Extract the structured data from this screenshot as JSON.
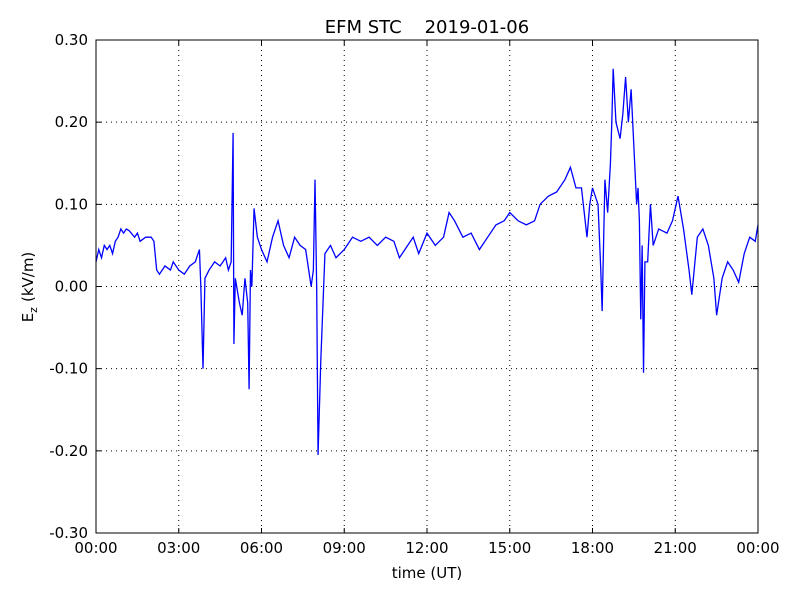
{
  "chart_data": {
    "type": "line",
    "title": "EFM STC    2019-01-06",
    "xlabel": "time (UT)",
    "ylabel": [
      "E",
      "z",
      "(kV/m)"
    ],
    "xlim": [
      0,
      24
    ],
    "xticks": [
      {
        "value": 0,
        "label": "00:00"
      },
      {
        "value": 3,
        "label": "03:00"
      },
      {
        "value": 6,
        "label": "06:00"
      },
      {
        "value": 9,
        "label": "09:00"
      },
      {
        "value": 12,
        "label": "12:00"
      },
      {
        "value": 15,
        "label": "15:00"
      },
      {
        "value": 18,
        "label": "18:00"
      },
      {
        "value": 21,
        "label": "21:00"
      },
      {
        "value": 24,
        "label": "00:00"
      }
    ],
    "ylim": [
      -0.3,
      0.3
    ],
    "yticks": [
      {
        "value": -0.3,
        "label": "-0.30"
      },
      {
        "value": -0.2,
        "label": "-0.20"
      },
      {
        "value": -0.1,
        "label": "-0.10"
      },
      {
        "value": 0,
        "label": "0.00"
      },
      {
        "value": 0.1,
        "label": "0.10"
      },
      {
        "value": 0.2,
        "label": "0.20"
      },
      {
        "value": 0.3,
        "label": "0.30"
      }
    ],
    "grid": true,
    "series": [
      {
        "color": "#0000ff",
        "x": [
          0.0,
          0.1,
          0.2,
          0.3,
          0.4,
          0.5,
          0.6,
          0.7,
          0.8,
          0.9,
          1.0,
          1.1,
          1.2,
          1.4,
          1.5,
          1.6,
          1.8,
          2.0,
          2.1,
          2.2,
          2.3,
          2.5,
          2.7,
          2.8,
          3.0,
          3.2,
          3.4,
          3.6,
          3.75,
          3.8,
          3.88,
          3.95,
          4.1,
          4.3,
          4.5,
          4.7,
          4.8,
          4.9,
          4.97,
          5.0,
          5.05,
          5.2,
          5.3,
          5.4,
          5.5,
          5.55,
          5.6,
          5.65,
          5.73,
          5.85,
          6.0,
          6.2,
          6.4,
          6.6,
          6.8,
          7.0,
          7.2,
          7.4,
          7.6,
          7.8,
          7.88,
          7.94,
          8.0,
          8.05,
          8.15,
          8.3,
          8.5,
          8.7,
          9.0,
          9.3,
          9.6,
          9.9,
          10.2,
          10.5,
          10.8,
          11.0,
          11.2,
          11.5,
          11.7,
          12.0,
          12.3,
          12.6,
          12.8,
          13.0,
          13.3,
          13.6,
          13.9,
          14.2,
          14.5,
          14.8,
          15.0,
          15.3,
          15.6,
          15.9,
          16.1,
          16.4,
          16.7,
          17.0,
          17.2,
          17.4,
          17.6,
          17.8,
          17.9,
          18.0,
          18.2,
          18.3,
          18.35,
          18.45,
          18.55,
          18.65,
          18.7,
          18.75,
          18.85,
          19.0,
          19.1,
          19.2,
          19.3,
          19.4,
          19.5,
          19.6,
          19.65,
          19.7,
          19.75,
          19.8,
          19.85,
          19.9,
          20.0,
          20.1,
          20.2,
          20.4,
          20.7,
          20.9,
          21.1,
          21.3,
          21.5,
          21.6,
          21.8,
          22.0,
          22.2,
          22.4,
          22.5,
          22.7,
          22.9,
          23.1,
          23.3,
          23.5,
          23.7,
          23.9,
          24.0
        ],
        "values": [
          0.03,
          0.045,
          0.035,
          0.05,
          0.045,
          0.05,
          0.04,
          0.055,
          0.06,
          0.07,
          0.065,
          0.07,
          0.068,
          0.06,
          0.065,
          0.055,
          0.06,
          0.06,
          0.055,
          0.02,
          0.015,
          0.025,
          0.02,
          0.03,
          0.02,
          0.015,
          0.025,
          0.03,
          0.045,
          0.0,
          -0.1,
          0.01,
          0.02,
          0.03,
          0.025,
          0.035,
          0.02,
          0.03,
          0.187,
          -0.07,
          0.01,
          -0.02,
          -0.035,
          0.01,
          -0.02,
          -0.125,
          0.02,
          0.0,
          0.095,
          0.06,
          0.045,
          0.03,
          0.06,
          0.08,
          0.05,
          0.035,
          0.06,
          0.05,
          0.045,
          0.0,
          0.02,
          0.13,
          0.0,
          -0.205,
          -0.09,
          0.04,
          0.05,
          0.035,
          0.045,
          0.06,
          0.055,
          0.06,
          0.05,
          0.06,
          0.055,
          0.035,
          0.045,
          0.06,
          0.04,
          0.065,
          0.05,
          0.06,
          0.09,
          0.08,
          0.06,
          0.065,
          0.045,
          0.06,
          0.075,
          0.08,
          0.09,
          0.08,
          0.075,
          0.08,
          0.1,
          0.11,
          0.115,
          0.13,
          0.145,
          0.12,
          0.12,
          0.06,
          0.1,
          0.12,
          0.1,
          0.02,
          -0.03,
          0.13,
          0.09,
          0.15,
          0.2,
          0.265,
          0.2,
          0.18,
          0.21,
          0.255,
          0.2,
          0.24,
          0.17,
          0.1,
          0.12,
          0.08,
          -0.04,
          0.05,
          -0.105,
          0.03,
          0.03,
          0.1,
          0.05,
          0.07,
          0.065,
          0.08,
          0.11,
          0.07,
          0.02,
          -0.01,
          0.06,
          0.07,
          0.05,
          0.01,
          -0.035,
          0.01,
          0.03,
          0.02,
          0.005,
          0.04,
          0.06,
          0.055,
          0.075
        ]
      }
    ]
  }
}
